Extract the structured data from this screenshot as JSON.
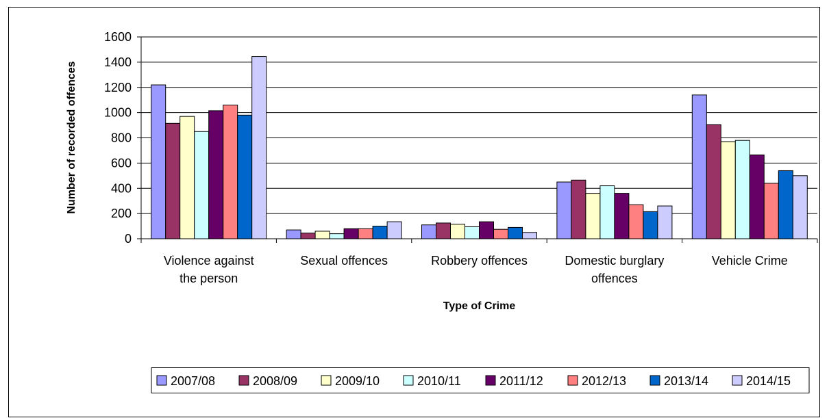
{
  "chart_data": {
    "type": "bar",
    "title": "",
    "xlabel": "Type of Crime",
    "ylabel": "Number of recorded offences",
    "ylim": [
      0,
      1600
    ],
    "yticks": [
      0,
      200,
      400,
      600,
      800,
      1000,
      1200,
      1400,
      1600
    ],
    "grid": true,
    "legend_position": "bottom",
    "categories": [
      [
        "Violence against",
        "the person"
      ],
      [
        "Sexual offences"
      ],
      [
        "Robbery offences"
      ],
      [
        "Domestic burglary",
        "offences"
      ],
      [
        "Vehicle Crime"
      ]
    ],
    "series": [
      {
        "name": "2007/08",
        "color": "#9999FF",
        "values": [
          1220,
          70,
          110,
          450,
          1140
        ]
      },
      {
        "name": "2008/09",
        "color": "#993366",
        "values": [
          915,
          45,
          125,
          465,
          905
        ]
      },
      {
        "name": "2009/10",
        "color": "#FFFFCC",
        "values": [
          970,
          60,
          115,
          360,
          770
        ]
      },
      {
        "name": "2010/11",
        "color": "#CCFFFF",
        "values": [
          850,
          40,
          95,
          420,
          780
        ]
      },
      {
        "name": "2011/12",
        "color": "#660066",
        "values": [
          1015,
          80,
          135,
          360,
          665
        ]
      },
      {
        "name": "2012/13",
        "color": "#FF8080",
        "values": [
          1060,
          80,
          75,
          270,
          440
        ]
      },
      {
        "name": "2013/14",
        "color": "#0066CC",
        "values": [
          980,
          100,
          90,
          215,
          540
        ]
      },
      {
        "name": "2014/15",
        "color": "#CCCCFF",
        "values": [
          1445,
          135,
          50,
          260,
          500
        ]
      }
    ]
  }
}
